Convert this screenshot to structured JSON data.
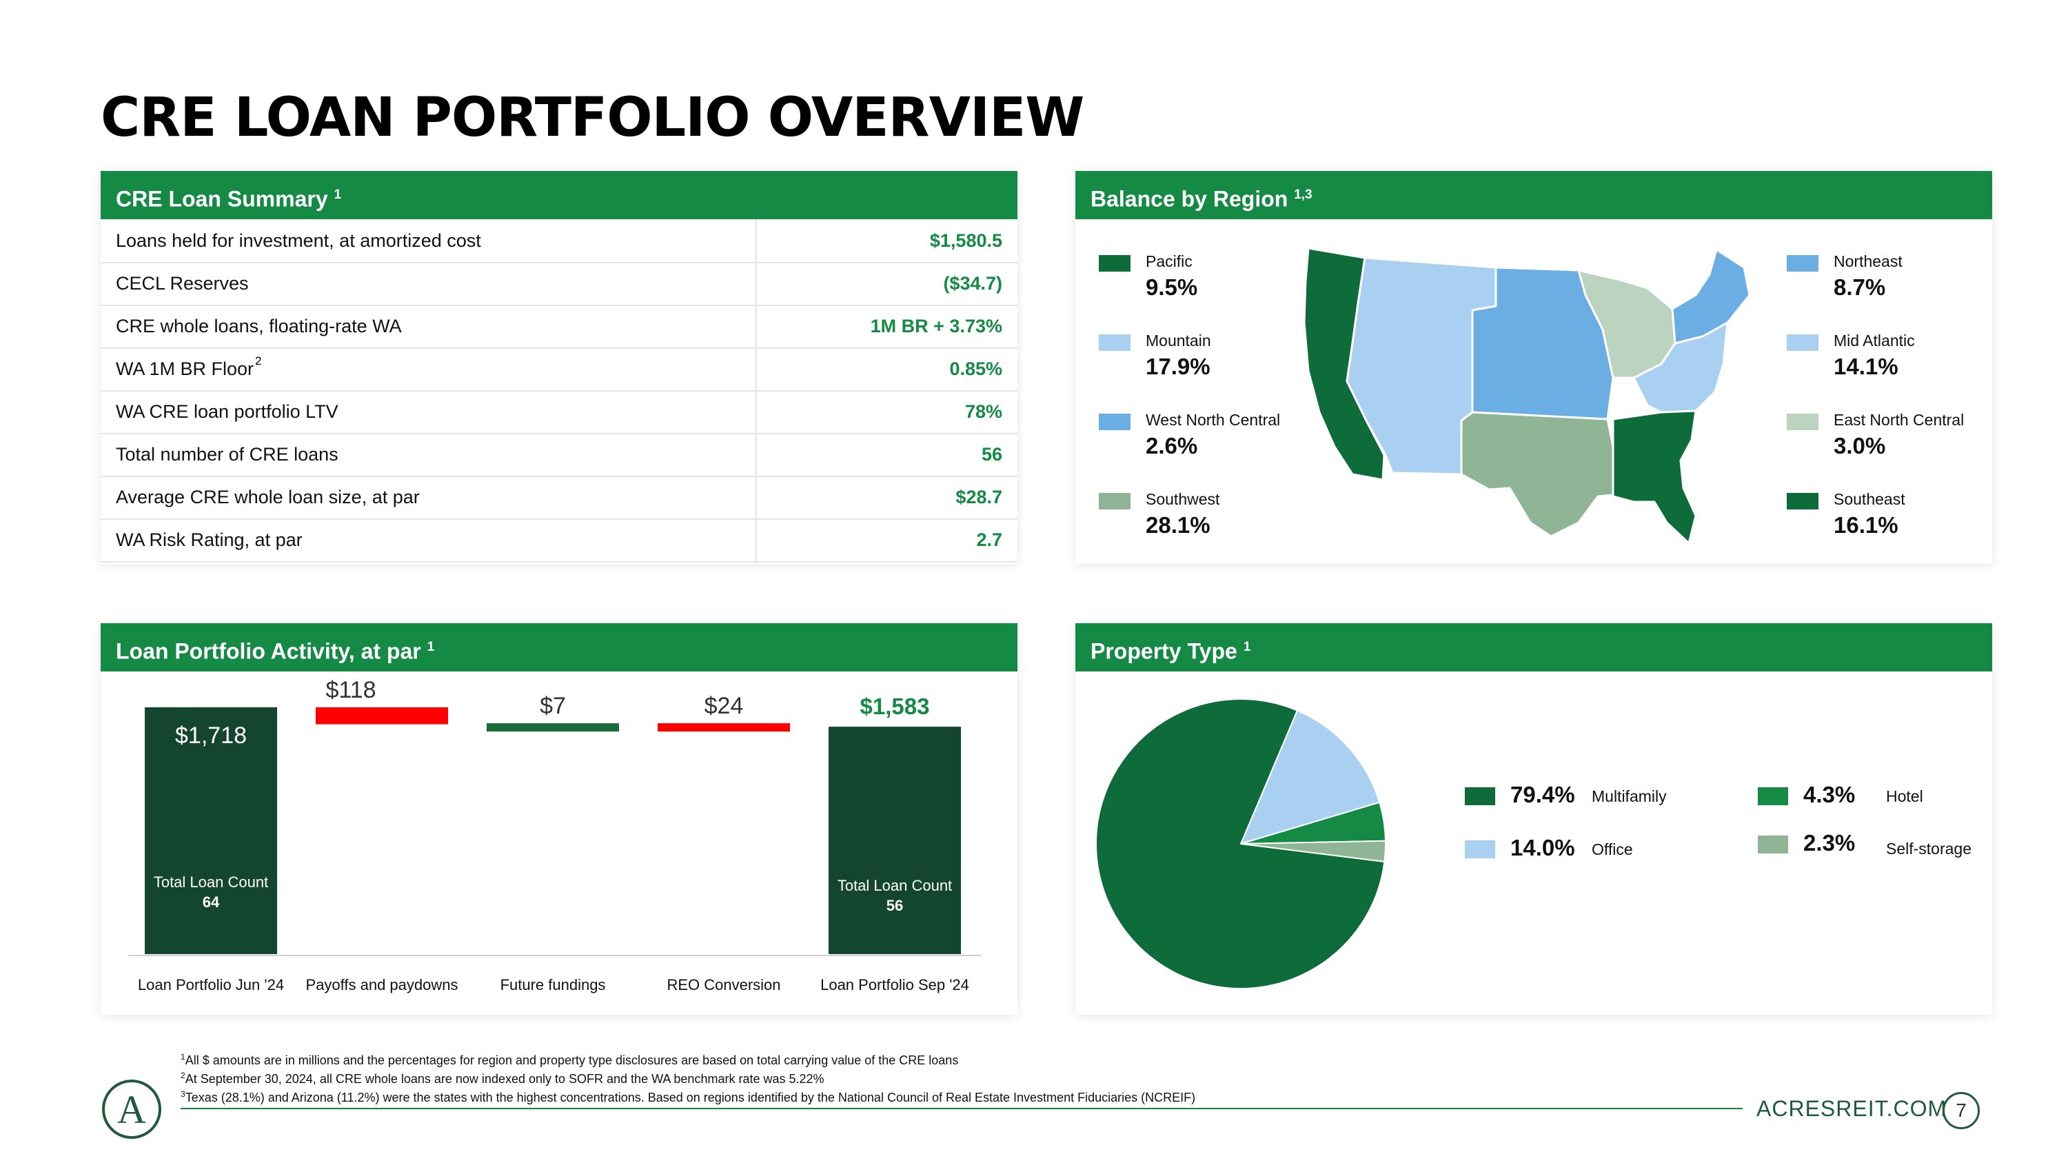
{
  "page_title": "CRE LOAN PORTFOLIO OVERVIEW",
  "summary": {
    "header": "CRE Loan Summary",
    "header_sup": "1",
    "rows": [
      {
        "label": "Loans held for investment, at amortized cost",
        "value": "$1,580.5"
      },
      {
        "label": "CECL Reserves",
        "value": "($34.7)"
      },
      {
        "label": "CRE whole loans, floating-rate WA",
        "value": "1M BR + 3.73%"
      },
      {
        "label": "WA 1M BR Floor",
        "label_sup": "2",
        "value": "0.85%"
      },
      {
        "label": "WA CRE loan portfolio LTV",
        "value": "78%"
      },
      {
        "label": "Total number of CRE loans",
        "value": "56"
      },
      {
        "label": "Average CRE whole loan size, at par",
        "value": "$28.7"
      },
      {
        "label": "WA Risk Rating, at par",
        "value": "2.7"
      }
    ]
  },
  "region": {
    "header": "Balance by Region",
    "header_sup": "1,3",
    "colors": {
      "Pacific": "#0e6b3a",
      "Mountain": "#a9d0f1",
      "West North Central": "#6baee3",
      "Southwest": "#8fb596",
      "Northeast": "#6baee3",
      "Mid Atlantic": "#a9d0f1",
      "East North Central": "#bcd4bf",
      "Southeast": "#0e6b3a"
    },
    "left": [
      {
        "name": "Pacific",
        "pct": "9.5%"
      },
      {
        "name": "Mountain",
        "pct": "17.9%"
      },
      {
        "name": "West North Central",
        "pct": "2.6%"
      },
      {
        "name": "Southwest",
        "pct": "28.1%"
      }
    ],
    "right": [
      {
        "name": "Northeast",
        "pct": "8.7%"
      },
      {
        "name": "Mid Atlantic",
        "pct": "14.1%"
      },
      {
        "name": "East North Central",
        "pct": "3.0%"
      },
      {
        "name": "Southeast",
        "pct": "16.1%"
      }
    ]
  },
  "activity": {
    "header": "Loan Portfolio Activity, at par",
    "header_sup": "1",
    "chart_data": {
      "type": "bar",
      "subtype": "waterfall",
      "categories": [
        "Loan Portfolio Jun '24",
        "Payoffs and paydowns",
        "Future fundings",
        "REO Conversion",
        "Loan Portfolio Sep '24"
      ],
      "values": [
        1718,
        -118,
        7,
        -24,
        1583
      ],
      "value_labels": [
        "$1,718",
        "$118",
        "$7",
        "$24",
        "$1,583"
      ],
      "kinds": [
        "total",
        "decrease",
        "increase",
        "decrease",
        "total"
      ],
      "colors": {
        "total": "#14452f",
        "decrease": "#ff0000",
        "increase": "#1a6b3c",
        "final_label": "#158a45"
      },
      "total_loan_count_label": "Total Loan Count",
      "loan_counts": [
        "64",
        "56"
      ]
    }
  },
  "property": {
    "header": "Property Type",
    "header_sup": "1",
    "chart_data": {
      "type": "pie",
      "slices": [
        {
          "name": "Multifamily",
          "value": 79.4,
          "label": "79.4%",
          "color": "#0e6b3a"
        },
        {
          "name": "Office",
          "value": 14.0,
          "label": "14.0%",
          "color": "#a9d0f1"
        },
        {
          "name": "Hotel",
          "value": 4.3,
          "label": "4.3%",
          "color": "#158a45"
        },
        {
          "name": "Self-storage",
          "value": 2.3,
          "label": "2.3%",
          "color": "#8fb596"
        }
      ]
    }
  },
  "footnotes": [
    {
      "sup": "1",
      "text": "All $ amounts are in millions and the percentages for region and property type disclosures are based on total carrying value of the CRE loans"
    },
    {
      "sup": "2",
      "text": "At September 30, 2024, all CRE whole loans are now indexed only to SOFR and the WA benchmark rate was 5.22%"
    },
    {
      "sup": "3",
      "text": "Texas (28.1%) and Arizona (11.2%) were the states with the highest concentrations.  Based on regions identified by the National Council of Real Estate Investment Fiduciaries (NCREIF)"
    }
  ],
  "footer": {
    "site": "ACRESREIT.COM",
    "page_number": "7",
    "logo_letter": "A"
  }
}
